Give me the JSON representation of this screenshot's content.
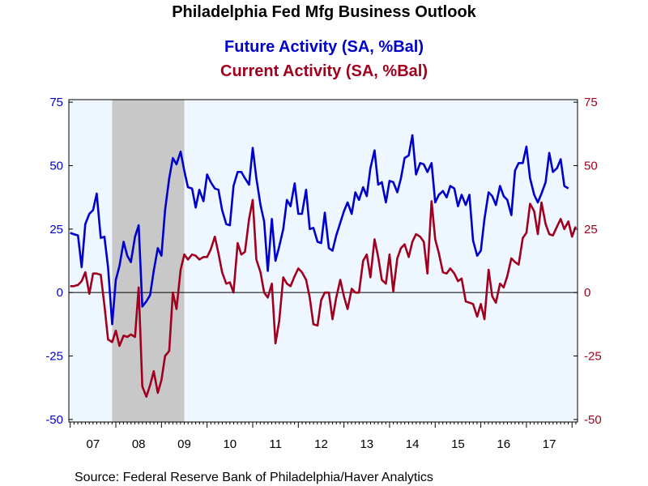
{
  "chart_data": {
    "type": "line",
    "title": "Philadelphia Fed Mfg Business Outlook",
    "series": [
      {
        "name": "Future Activity (SA, %Bal)",
        "color": "#0000CC",
        "axis": "left",
        "points": [
          [
            2007.0,
            23.5
          ],
          [
            2007.08,
            23.0
          ],
          [
            2007.17,
            22.5
          ],
          [
            2007.25,
            10.0
          ],
          [
            2007.33,
            27.0
          ],
          [
            2007.42,
            31.0
          ],
          [
            2007.5,
            32.5
          ],
          [
            2007.58,
            39.0
          ],
          [
            2007.67,
            21.5
          ],
          [
            2007.75,
            22.0
          ],
          [
            2007.83,
            10.0
          ],
          [
            2007.92,
            -12.5
          ],
          [
            2008.0,
            5.0
          ],
          [
            2008.08,
            10.5
          ],
          [
            2008.17,
            20.0
          ],
          [
            2008.25,
            14.5
          ],
          [
            2008.33,
            12.0
          ],
          [
            2008.42,
            22.0
          ],
          [
            2008.5,
            26.5
          ],
          [
            2008.58,
            -5.5
          ],
          [
            2008.67,
            -3.5
          ],
          [
            2008.75,
            -1.0
          ],
          [
            2008.83,
            8.5
          ],
          [
            2008.92,
            17.5
          ],
          [
            2009.0,
            14.5
          ],
          [
            2009.08,
            32.5
          ],
          [
            2009.17,
            45.0
          ],
          [
            2009.25,
            53.0
          ],
          [
            2009.33,
            50.5
          ],
          [
            2009.42,
            55.5
          ],
          [
            2009.5,
            48.0
          ],
          [
            2009.58,
            41.5
          ],
          [
            2009.67,
            41.0
          ],
          [
            2009.75,
            33.5
          ],
          [
            2009.83,
            40.5
          ],
          [
            2009.92,
            36.0
          ],
          [
            2010.0,
            46.5
          ],
          [
            2010.08,
            43.5
          ],
          [
            2010.17,
            41.0
          ],
          [
            2010.25,
            40.5
          ],
          [
            2010.33,
            32.5
          ],
          [
            2010.42,
            27.0
          ],
          [
            2010.5,
            26.5
          ],
          [
            2010.58,
            42.0
          ],
          [
            2010.67,
            47.5
          ],
          [
            2010.75,
            47.5
          ],
          [
            2010.83,
            45.0
          ],
          [
            2010.92,
            42.5
          ],
          [
            2011.0,
            57.0
          ],
          [
            2011.08,
            45.0
          ],
          [
            2011.17,
            34.5
          ],
          [
            2011.25,
            28.0
          ],
          [
            2011.33,
            8.5
          ],
          [
            2011.42,
            29.0
          ],
          [
            2011.5,
            12.5
          ],
          [
            2011.58,
            18.0
          ],
          [
            2011.67,
            25.0
          ],
          [
            2011.75,
            36.5
          ],
          [
            2011.83,
            34.0
          ],
          [
            2011.92,
            43.0
          ],
          [
            2012.0,
            31.0
          ],
          [
            2012.08,
            31.0
          ],
          [
            2012.17,
            40.5
          ],
          [
            2012.25,
            25.0
          ],
          [
            2012.33,
            25.5
          ],
          [
            2012.42,
            20.0
          ],
          [
            2012.5,
            19.5
          ],
          [
            2012.58,
            31.5
          ],
          [
            2012.67,
            17.5
          ],
          [
            2012.75,
            16.5
          ],
          [
            2012.83,
            22.5
          ],
          [
            2012.92,
            27.5
          ],
          [
            2013.0,
            32.0
          ],
          [
            2013.08,
            35.5
          ],
          [
            2013.17,
            31.0
          ],
          [
            2013.25,
            39.5
          ],
          [
            2013.33,
            36.5
          ],
          [
            2013.42,
            41.5
          ],
          [
            2013.5,
            38.0
          ],
          [
            2013.58,
            49.0
          ],
          [
            2013.67,
            56.0
          ],
          [
            2013.75,
            42.5
          ],
          [
            2013.83,
            43.5
          ],
          [
            2013.92,
            35.5
          ],
          [
            2014.0,
            44.0
          ],
          [
            2014.08,
            43.5
          ],
          [
            2014.17,
            39.5
          ],
          [
            2014.25,
            45.0
          ],
          [
            2014.33,
            53.0
          ],
          [
            2014.42,
            54.0
          ],
          [
            2014.5,
            62.0
          ],
          [
            2014.58,
            46.5
          ],
          [
            2014.67,
            51.0
          ],
          [
            2014.75,
            50.5
          ],
          [
            2014.83,
            47.5
          ],
          [
            2014.92,
            51.0
          ],
          [
            2015.0,
            35.5
          ],
          [
            2015.08,
            38.5
          ],
          [
            2015.17,
            40.0
          ],
          [
            2015.25,
            37.5
          ],
          [
            2015.33,
            42.0
          ],
          [
            2015.42,
            41.0
          ],
          [
            2015.5,
            34.0
          ],
          [
            2015.58,
            38.5
          ],
          [
            2015.67,
            34.5
          ],
          [
            2015.75,
            38.5
          ],
          [
            2015.83,
            20.5
          ],
          [
            2015.92,
            14.5
          ],
          [
            2016.0,
            16.5
          ],
          [
            2016.08,
            29.0
          ],
          [
            2016.17,
            39.5
          ],
          [
            2016.25,
            38.0
          ],
          [
            2016.33,
            34.5
          ],
          [
            2016.42,
            42.0
          ],
          [
            2016.5,
            38.0
          ],
          [
            2016.58,
            36.5
          ],
          [
            2016.67,
            30.5
          ],
          [
            2016.75,
            48.0
          ],
          [
            2016.83,
            51.0
          ],
          [
            2016.92,
            51.0
          ],
          [
            2017.0,
            57.5
          ],
          [
            2017.08,
            45.0
          ],
          [
            2017.17,
            38.5
          ],
          [
            2017.25,
            35.5
          ],
          [
            2017.33,
            39.0
          ],
          [
            2017.42,
            43.5
          ],
          [
            2017.5,
            55.0
          ],
          [
            2017.58,
            47.5
          ],
          [
            2017.67,
            49.0
          ],
          [
            2017.75,
            52.5
          ],
          [
            2017.83,
            42.0
          ],
          [
            2017.92,
            41.0
          ]
        ]
      },
      {
        "name": "Current Activity (SA, %Bal)",
        "color": "#A0001E",
        "axis": "right",
        "points": [
          [
            2007.0,
            2.5
          ],
          [
            2007.08,
            2.5
          ],
          [
            2007.17,
            3.0
          ],
          [
            2007.25,
            4.5
          ],
          [
            2007.33,
            8.0
          ],
          [
            2007.42,
            -0.5
          ],
          [
            2007.5,
            7.5
          ],
          [
            2007.58,
            7.5
          ],
          [
            2007.67,
            7.0
          ],
          [
            2007.75,
            -5.0
          ],
          [
            2007.83,
            -18.5
          ],
          [
            2007.92,
            -19.5
          ],
          [
            2008.0,
            -15.0
          ],
          [
            2008.08,
            -21.0
          ],
          [
            2008.17,
            -17.0
          ],
          [
            2008.25,
            -17.5
          ],
          [
            2008.33,
            -16.5
          ],
          [
            2008.42,
            -17.5
          ],
          [
            2008.5,
            2.0
          ],
          [
            2008.58,
            -37.0
          ],
          [
            2008.67,
            -41.0
          ],
          [
            2008.75,
            -36.5
          ],
          [
            2008.83,
            -31.0
          ],
          [
            2008.92,
            -39.5
          ],
          [
            2009.0,
            -34.5
          ],
          [
            2009.08,
            -25.0
          ],
          [
            2009.17,
            -23.0
          ],
          [
            2009.25,
            0.0
          ],
          [
            2009.33,
            -6.5
          ],
          [
            2009.42,
            9.0
          ],
          [
            2009.5,
            15.0
          ],
          [
            2009.58,
            13.0
          ],
          [
            2009.67,
            15.0
          ],
          [
            2009.75,
            14.5
          ],
          [
            2009.83,
            13.0
          ],
          [
            2009.92,
            14.0
          ],
          [
            2010.0,
            14.0
          ],
          [
            2010.08,
            17.0
          ],
          [
            2010.17,
            22.0
          ],
          [
            2010.25,
            15.5
          ],
          [
            2010.33,
            8.0
          ],
          [
            2010.42,
            3.5
          ],
          [
            2010.5,
            4.0
          ],
          [
            2010.58,
            0.0
          ],
          [
            2010.67,
            19.5
          ],
          [
            2010.75,
            15.0
          ],
          [
            2010.83,
            16.0
          ],
          [
            2010.92,
            29.0
          ],
          [
            2011.0,
            36.5
          ],
          [
            2011.08,
            13.0
          ],
          [
            2011.17,
            8.0
          ],
          [
            2011.25,
            0.0
          ],
          [
            2011.33,
            -2.0
          ],
          [
            2011.42,
            3.5
          ],
          [
            2011.5,
            -20.0
          ],
          [
            2011.58,
            -11.5
          ],
          [
            2011.67,
            6.0
          ],
          [
            2011.75,
            3.5
          ],
          [
            2011.83,
            2.5
          ],
          [
            2011.92,
            6.5
          ],
          [
            2012.0,
            9.5
          ],
          [
            2012.08,
            8.0
          ],
          [
            2012.17,
            5.0
          ],
          [
            2012.25,
            -2.0
          ],
          [
            2012.33,
            -12.5
          ],
          [
            2012.42,
            -13.0
          ],
          [
            2012.5,
            -3.0
          ],
          [
            2012.58,
            0.0
          ],
          [
            2012.67,
            0.0
          ],
          [
            2012.75,
            -10.5
          ],
          [
            2012.83,
            -2.0
          ],
          [
            2012.92,
            5.0
          ],
          [
            2013.0,
            -1.5
          ],
          [
            2013.08,
            -6.5
          ],
          [
            2013.17,
            1.5
          ],
          [
            2013.25,
            0.0
          ],
          [
            2013.33,
            0.0
          ],
          [
            2013.42,
            12.5
          ],
          [
            2013.5,
            15.0
          ],
          [
            2013.58,
            6.0
          ],
          [
            2013.67,
            21.0
          ],
          [
            2013.75,
            14.0
          ],
          [
            2013.83,
            5.0
          ],
          [
            2013.92,
            3.5
          ],
          [
            2014.0,
            15.0
          ],
          [
            2014.08,
            0.5
          ],
          [
            2014.17,
            13.5
          ],
          [
            2014.25,
            17.5
          ],
          [
            2014.33,
            19.0
          ],
          [
            2014.42,
            14.0
          ],
          [
            2014.5,
            20.0
          ],
          [
            2014.58,
            23.0
          ],
          [
            2014.67,
            22.0
          ],
          [
            2014.75,
            20.0
          ],
          [
            2014.83,
            7.5
          ],
          [
            2014.92,
            36.0
          ],
          [
            2015.0,
            21.0
          ],
          [
            2015.08,
            15.5
          ],
          [
            2015.17,
            8.0
          ],
          [
            2015.25,
            7.5
          ],
          [
            2015.33,
            9.5
          ],
          [
            2015.42,
            7.5
          ],
          [
            2015.5,
            4.5
          ],
          [
            2015.58,
            5.5
          ],
          [
            2015.67,
            -3.5
          ],
          [
            2015.75,
            -4.0
          ],
          [
            2015.83,
            -4.5
          ],
          [
            2015.92,
            -9.5
          ],
          [
            2016.0,
            -4.5
          ],
          [
            2016.08,
            -10.5
          ],
          [
            2016.17,
            9.0
          ],
          [
            2016.25,
            -1.5
          ],
          [
            2016.33,
            -4.0
          ],
          [
            2016.42,
            3.5
          ],
          [
            2016.5,
            2.0
          ],
          [
            2016.58,
            6.5
          ],
          [
            2016.67,
            13.5
          ],
          [
            2016.75,
            12.0
          ],
          [
            2016.83,
            11.0
          ],
          [
            2016.92,
            21.5
          ],
          [
            2017.0,
            23.5
          ],
          [
            2017.08,
            35.0
          ],
          [
            2017.17,
            32.0
          ],
          [
            2017.25,
            23.0
          ],
          [
            2017.33,
            35.5
          ],
          [
            2017.42,
            27.0
          ],
          [
            2017.5,
            23.0
          ],
          [
            2017.58,
            22.5
          ],
          [
            2017.67,
            26.0
          ],
          [
            2017.75,
            29.0
          ],
          [
            2017.83,
            25.0
          ],
          [
            2017.92,
            28.0
          ],
          [
            2018.0,
            22.0
          ],
          [
            2018.08,
            26.0
          ]
        ]
      }
    ],
    "x_tick_labels": [
      "07",
      "08",
      "09",
      "10",
      "11",
      "12",
      "13",
      "14",
      "15",
      "16",
      "17"
    ],
    "xlim": [
      2006.97,
      2018.12
    ],
    "left_axis": {
      "ticks": [
        75,
        50,
        25,
        0,
        -25,
        -50
      ],
      "ylim": [
        -51,
        76
      ],
      "color": "#0000CC"
    },
    "right_axis": {
      "ticks": [
        75,
        50,
        25,
        0,
        -25,
        -50
      ],
      "ylim": [
        -51,
        76
      ],
      "color": "#A0001E"
    },
    "zero_line": true,
    "grid": false,
    "recession_shading": [
      [
        2007.92,
        2009.5
      ]
    ],
    "legend_placement": "top-center (colored subtitle lines)",
    "plot_background": "#EEF6FF",
    "source": "Source:  Federal Reserve Bank of Philadelphia/Haver Analytics"
  }
}
